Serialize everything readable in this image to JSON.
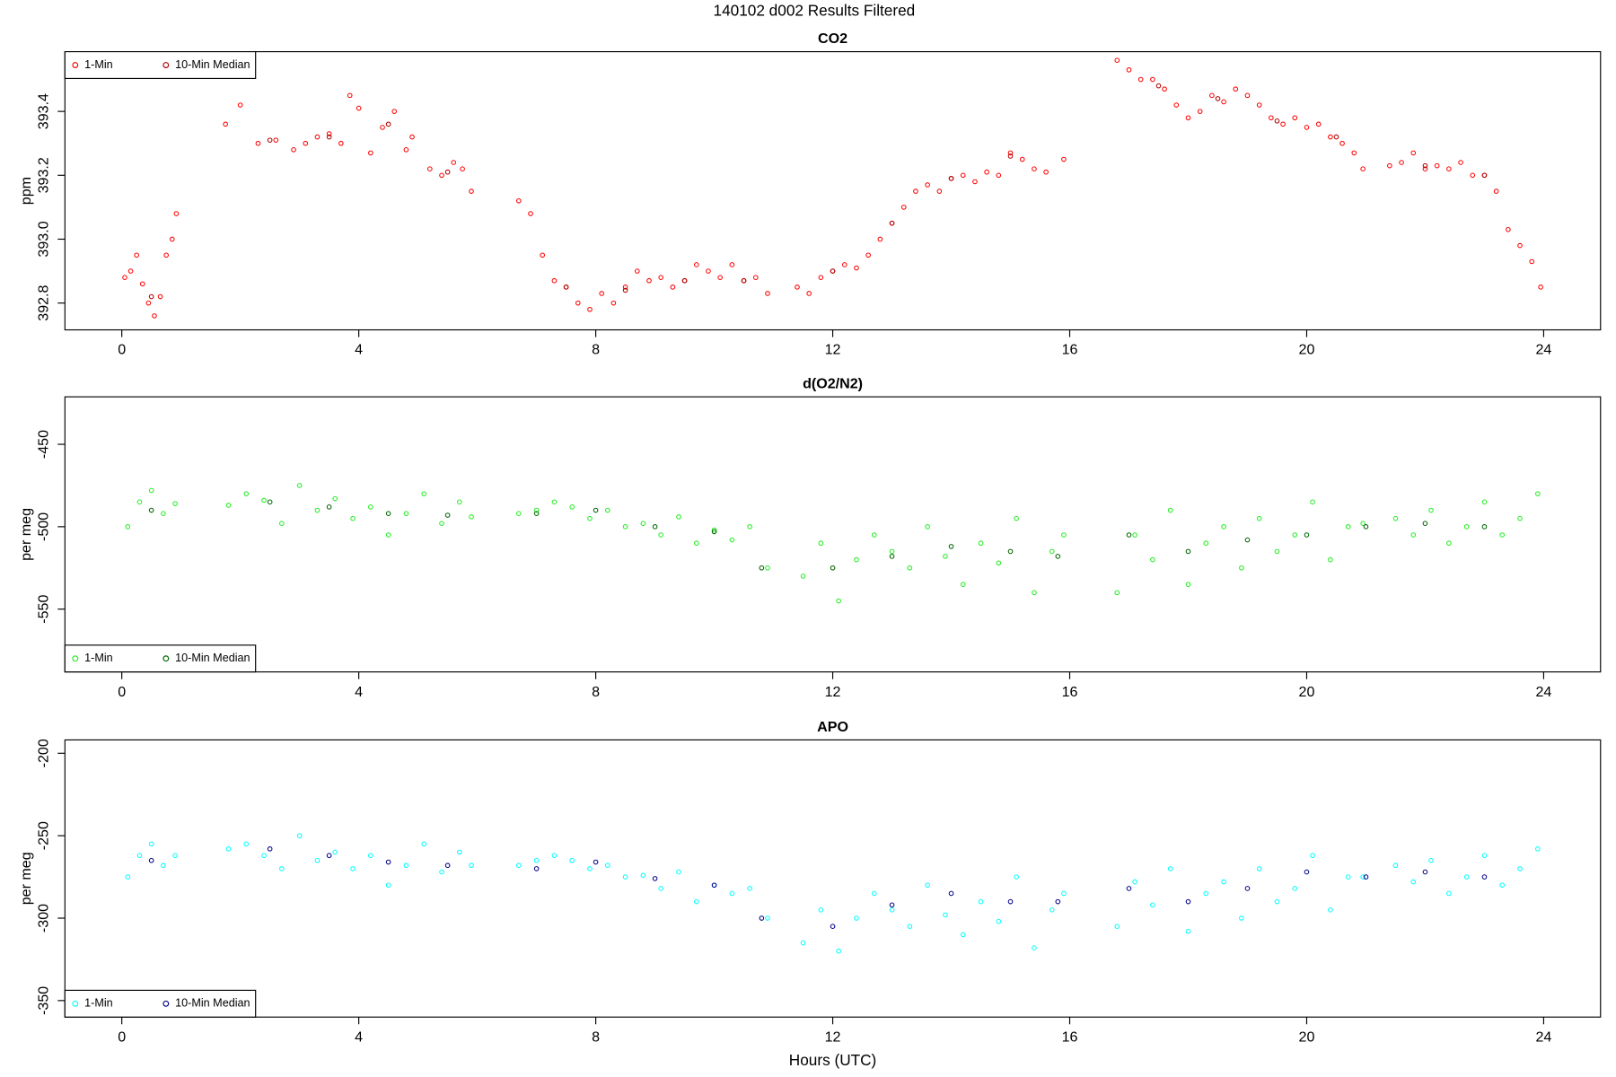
{
  "title": "140102   d002   Results Filtered",
  "chart_data": [
    {
      "type": "scatter",
      "title": "CO2",
      "ylabel": "ppm",
      "legend": "topleft",
      "xlim": [
        -0.96,
        24.96
      ],
      "xticks": [
        0,
        4,
        8,
        12,
        16,
        20,
        24
      ],
      "ylim": [
        392.716,
        393.587
      ],
      "yticks": [
        392.8,
        {
          "value": 393,
          "label": "393.0"
        },
        393.2,
        393.4
      ],
      "series": [
        {
          "name": "1-Min",
          "color": "#ff0000",
          "x": [
            0.05,
            0.15,
            0.25,
            0.35,
            0.45,
            0.55,
            0.65,
            0.75,
            0.85,
            0.92,
            1.75,
            2.0,
            2.3,
            2.6,
            2.9,
            3.1,
            3.3,
            3.5,
            3.7,
            3.85,
            4.0,
            4.2,
            4.4,
            4.6,
            4.8,
            4.9,
            5.2,
            5.4,
            5.6,
            5.75,
            5.9,
            6.7,
            6.9,
            7.1,
            7.3,
            7.5,
            7.7,
            7.9,
            8.1,
            8.3,
            8.5,
            8.7,
            8.9,
            9.1,
            9.3,
            9.5,
            9.7,
            9.9,
            10.1,
            10.3,
            10.5,
            10.7,
            10.9,
            11.4,
            11.6,
            11.8,
            12.0,
            12.2,
            12.4,
            12.6,
            12.8,
            13.0,
            13.2,
            13.4,
            13.6,
            13.8,
            14.0,
            14.2,
            14.4,
            14.6,
            14.8,
            15.0,
            15.2,
            15.4,
            15.6,
            15.9,
            16.8,
            17.0,
            17.2,
            17.4,
            17.6,
            17.8,
            18.0,
            18.2,
            18.4,
            18.6,
            18.8,
            19.0,
            19.2,
            19.4,
            19.6,
            19.8,
            20.0,
            20.2,
            20.4,
            20.6,
            20.8,
            20.95,
            21.4,
            21.6,
            21.8,
            22.0,
            22.2,
            22.4,
            22.6,
            22.8,
            23.0,
            23.2,
            23.4,
            23.6,
            23.8,
            23.95
          ],
          "values": [
            392.88,
            392.9,
            392.95,
            392.86,
            392.8,
            392.76,
            392.82,
            392.95,
            393.0,
            393.08,
            393.36,
            393.42,
            393.3,
            393.31,
            393.28,
            393.3,
            393.32,
            393.33,
            393.3,
            393.45,
            393.41,
            393.27,
            393.35,
            393.4,
            393.28,
            393.32,
            393.22,
            393.2,
            393.24,
            393.22,
            393.15,
            393.12,
            393.08,
            392.95,
            392.87,
            392.85,
            392.8,
            392.78,
            392.83,
            392.8,
            392.85,
            392.9,
            392.87,
            392.88,
            392.85,
            392.87,
            392.92,
            392.9,
            392.88,
            392.92,
            392.87,
            392.88,
            392.83,
            392.85,
            392.83,
            392.88,
            392.9,
            392.92,
            392.91,
            392.95,
            393.0,
            393.05,
            393.1,
            393.15,
            393.17,
            393.15,
            393.19,
            393.2,
            393.18,
            393.21,
            393.2,
            393.27,
            393.25,
            393.22,
            393.21,
            393.25,
            393.56,
            393.53,
            393.5,
            393.5,
            393.47,
            393.42,
            393.38,
            393.4,
            393.45,
            393.43,
            393.47,
            393.45,
            393.42,
            393.38,
            393.36,
            393.38,
            393.35,
            393.36,
            393.32,
            393.3,
            393.27,
            393.22,
            393.23,
            393.24,
            393.27,
            393.22,
            393.23,
            393.22,
            393.24,
            393.2,
            393.2,
            393.15,
            393.03,
            392.98,
            392.93,
            392.85
          ]
        },
        {
          "name": "10-Min Median",
          "color": "#b00000",
          "x": [
            0.5,
            2.5,
            3.5,
            4.5,
            5.5,
            7.5,
            8.5,
            9.5,
            10.5,
            12.0,
            13.0,
            14.0,
            15.0,
            17.5,
            18.5,
            19.5,
            20.5,
            22.0,
            23.0
          ],
          "values": [
            392.82,
            393.31,
            393.32,
            393.36,
            393.21,
            392.85,
            392.84,
            392.87,
            392.87,
            392.9,
            393.05,
            393.19,
            393.26,
            393.48,
            393.44,
            393.37,
            393.32,
            393.23,
            393.2
          ]
        }
      ]
    },
    {
      "type": "scatter",
      "title": "d(O2/N2)",
      "ylabel": "per meg",
      "legend": "bottomleft",
      "xlim": [
        -0.96,
        24.96
      ],
      "xticks": [
        0,
        4,
        8,
        12,
        16,
        20,
        24
      ],
      "ylim": [
        -588.1,
        -421.2
      ],
      "yticks": [
        -550,
        -500,
        -450
      ],
      "series": [
        {
          "name": "1-Min",
          "color": "#22ee22",
          "x": [
            0.1,
            0.3,
            0.5,
            0.7,
            0.9,
            1.8,
            2.1,
            2.4,
            2.7,
            3.0,
            3.3,
            3.6,
            3.9,
            4.2,
            4.5,
            4.8,
            5.1,
            5.4,
            5.7,
            5.9,
            6.7,
            7.0,
            7.3,
            7.6,
            7.9,
            8.2,
            8.5,
            8.8,
            9.1,
            9.4,
            9.7,
            10.0,
            10.3,
            10.6,
            10.9,
            11.5,
            11.8,
            12.1,
            12.4,
            12.7,
            13.0,
            13.3,
            13.6,
            13.9,
            14.2,
            14.5,
            14.8,
            15.1,
            15.4,
            15.7,
            15.9,
            16.8,
            17.1,
            17.4,
            17.7,
            18.0,
            18.3,
            18.6,
            18.9,
            19.2,
            19.5,
            19.8,
            20.1,
            20.4,
            20.7,
            20.95,
            21.5,
            21.8,
            22.1,
            22.4,
            22.7,
            23.0,
            23.3,
            23.6,
            23.9
          ],
          "values": [
            -500,
            -485,
            -478,
            -492,
            -486,
            -487,
            -480,
            -484,
            -498,
            -475,
            -490,
            -483,
            -495,
            -488,
            -505,
            -492,
            -480,
            -498,
            -485,
            -494,
            -492,
            -490,
            -485,
            -488,
            -495,
            -490,
            -500,
            -498,
            -505,
            -494,
            -510,
            -502,
            -508,
            -500,
            -525,
            -530,
            -510,
            -545,
            -520,
            -505,
            -515,
            -525,
            -500,
            -518,
            -535,
            -510,
            -522,
            -495,
            -540,
            -515,
            -505,
            -540,
            -505,
            -520,
            -490,
            -535,
            -510,
            -500,
            -525,
            -495,
            -515,
            -505,
            -485,
            -520,
            -500,
            -498,
            -495,
            -505,
            -490,
            -510,
            -500,
            -485,
            -505,
            -495,
            -480
          ]
        },
        {
          "name": "10-Min Median",
          "color": "#006400",
          "x": [
            0.5,
            2.5,
            3.5,
            4.5,
            5.5,
            7.0,
            8.0,
            9.0,
            10.0,
            10.8,
            12.0,
            13.0,
            14.0,
            15.0,
            15.8,
            17.0,
            18.0,
            19.0,
            20.0,
            21.0,
            22.0,
            23.0
          ],
          "values": [
            -490,
            -485,
            -488,
            -492,
            -493,
            -492,
            -490,
            -500,
            -503,
            -525,
            -525,
            -518,
            -512,
            -515,
            -518,
            -505,
            -515,
            -508,
            -505,
            -500,
            -498,
            -500
          ]
        }
      ]
    },
    {
      "type": "scatter",
      "title": "APO",
      "ylabel": "per meg",
      "xlabel": "Hours (UTC)",
      "legend": "bottomleft",
      "xlim": [
        -0.96,
        24.96
      ],
      "xticks": [
        0,
        4,
        8,
        12,
        16,
        20,
        24
      ],
      "ylim": [
        -360,
        -191.9
      ],
      "yticks": [
        -350,
        -300,
        -250,
        -200
      ],
      "series": [
        {
          "name": "1-Min",
          "color": "#00ffff",
          "x": [
            0.1,
            0.3,
            0.5,
            0.7,
            0.9,
            1.8,
            2.1,
            2.4,
            2.7,
            3.0,
            3.3,
            3.6,
            3.9,
            4.2,
            4.5,
            4.8,
            5.1,
            5.4,
            5.7,
            5.9,
            6.7,
            7.0,
            7.3,
            7.6,
            7.9,
            8.2,
            8.5,
            8.8,
            9.1,
            9.4,
            9.7,
            10.0,
            10.3,
            10.6,
            10.9,
            11.5,
            11.8,
            12.1,
            12.4,
            12.7,
            13.0,
            13.3,
            13.6,
            13.9,
            14.2,
            14.5,
            14.8,
            15.1,
            15.4,
            15.7,
            15.9,
            16.8,
            17.1,
            17.4,
            17.7,
            18.0,
            18.3,
            18.6,
            18.9,
            19.2,
            19.5,
            19.8,
            20.1,
            20.4,
            20.7,
            20.95,
            21.5,
            21.8,
            22.1,
            22.4,
            22.7,
            23.0,
            23.3,
            23.6,
            23.9
          ],
          "values": [
            -275,
            -262,
            -255,
            -268,
            -262,
            -258,
            -255,
            -262,
            -270,
            -250,
            -265,
            -260,
            -270,
            -262,
            -280,
            -268,
            -255,
            -272,
            -260,
            -268,
            -268,
            -265,
            -262,
            -265,
            -270,
            -268,
            -275,
            -274,
            -282,
            -272,
            -290,
            -280,
            -285,
            -282,
            -300,
            -315,
            -295,
            -320,
            -300,
            -285,
            -295,
            -305,
            -280,
            -298,
            -310,
            -290,
            -302,
            -275,
            -318,
            -295,
            -285,
            -305,
            -278,
            -292,
            -270,
            -308,
            -285,
            -278,
            -300,
            -270,
            -290,
            -282,
            -262,
            -295,
            -275,
            -275,
            -268,
            -278,
            -265,
            -285,
            -275,
            -262,
            -280,
            -270,
            -258
          ]
        },
        {
          "name": "10-Min Median",
          "color": "#00008b",
          "x": [
            0.5,
            2.5,
            3.5,
            4.5,
            5.5,
            7.0,
            8.0,
            9.0,
            10.0,
            10.8,
            12.0,
            13.0,
            14.0,
            15.0,
            15.8,
            17.0,
            18.0,
            19.0,
            20.0,
            21.0,
            22.0,
            23.0
          ],
          "values": [
            -265,
            -258,
            -262,
            -266,
            -268,
            -270,
            -266,
            -276,
            -280,
            -300,
            -305,
            -292,
            -285,
            -290,
            -290,
            -282,
            -290,
            -282,
            -272,
            -275,
            -272,
            -275
          ]
        }
      ]
    }
  ]
}
